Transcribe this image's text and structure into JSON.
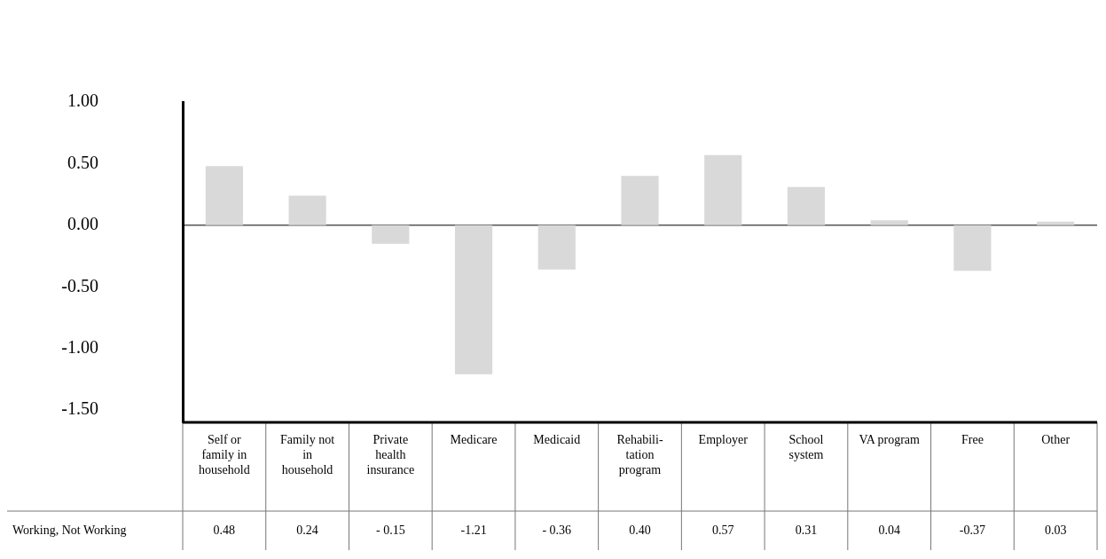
{
  "chart_data": {
    "type": "bar",
    "categories": [
      "Self or family in household",
      "Family not in household",
      "Private health insurance",
      "Medicare",
      "Medicaid",
      "Rehabili-tation program",
      "Employer",
      "School system",
      "VA program",
      "Free",
      "Other"
    ],
    "series": [
      {
        "name": "Working, Not Working",
        "color": "#d9d9d9",
        "values": [
          0.48,
          0.24,
          -0.15,
          -1.21,
          -0.36,
          0.4,
          0.57,
          0.31,
          0.04,
          -0.37,
          0.03
        ],
        "value_labels": [
          "0.48",
          "0.24",
          "- 0.15",
          "-1.21",
          "- 0.36",
          "0.40",
          "0.57",
          "0.31",
          "0.04",
          "-0.37",
          "0.03"
        ]
      }
    ],
    "ylim": [
      -1.6,
      1.0
    ],
    "yticks": [
      {
        "value": -1.5,
        "label": "-1.50"
      },
      {
        "value": -1.0,
        "label": "-1.00"
      },
      {
        "value": -0.5,
        "label": "-0.50"
      },
      {
        "value": 0,
        "label": "0.00"
      },
      {
        "value": 0.5,
        "label": "0.50"
      },
      {
        "value": 1.0,
        "label": "1.00"
      }
    ],
    "ref_lines": [
      {
        "axis": "y",
        "value": 0,
        "color": "#000000"
      }
    ],
    "grid": false,
    "legend": false
  }
}
